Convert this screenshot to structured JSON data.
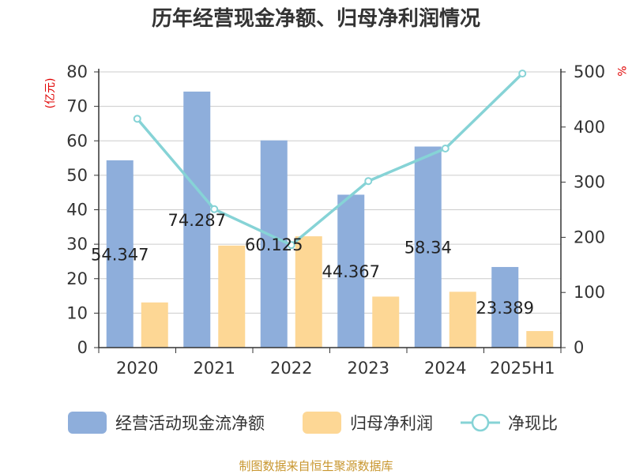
{
  "chart_data": {
    "type": "bar",
    "title": "历年经营现金净额、归母净利润情况",
    "categories": [
      "2020",
      "2021",
      "2022",
      "2023",
      "2024",
      "2025H1"
    ],
    "y_left_label": "(亿元)",
    "y_right_label": "%",
    "y_left_ticks": [
      "0",
      "10",
      "20",
      "30",
      "40",
      "50",
      "60",
      "70",
      "80"
    ],
    "y_right_ticks": [
      "0",
      "100",
      "200",
      "300",
      "400",
      "500"
    ],
    "y_left_lim": [
      0,
      80
    ],
    "y_right_lim": [
      0,
      500
    ],
    "grid": true,
    "legend_position": "bottom",
    "series": [
      {
        "name": "经营活动现金流净额",
        "type": "bar",
        "axis": "left",
        "color": "#8eaedb",
        "values": [
          54.347,
          74.287,
          60.125,
          44.367,
          58.34,
          23.389
        ],
        "labels": [
          "54.347",
          "74.287",
          "60.125",
          "44.367",
          "58.34",
          "23.389"
        ]
      },
      {
        "name": "归母净利润",
        "type": "bar",
        "axis": "left",
        "color": "#fdd795",
        "values": [
          13.1,
          29.6,
          32.3,
          14.8,
          16.2,
          4.8
        ]
      },
      {
        "name": "净现比",
        "type": "line",
        "axis": "right",
        "color": "#86d3d6",
        "values": [
          415,
          251,
          186,
          302,
          361,
          497
        ]
      }
    ],
    "source": "制图数据来自恒生聚源数据库"
  }
}
